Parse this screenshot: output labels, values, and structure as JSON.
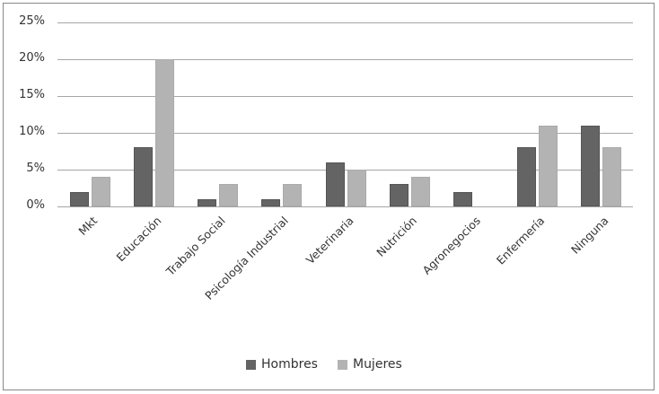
{
  "chart_data": {
    "type": "bar",
    "title": "",
    "xlabel": "",
    "ylabel": "",
    "ylim": [
      0,
      25
    ],
    "yticks": [
      "0%",
      "5%",
      "10%",
      "15%",
      "20%",
      "25%"
    ],
    "grid": true,
    "legend_position": "bottom",
    "categories": [
      "Mkt",
      "Educación",
      "Trabajo Social",
      "Psicología Industrial",
      "Veterinaria",
      "Nutrición",
      "Agronegocios",
      "Enfermería",
      "Ninguna"
    ],
    "series": [
      {
        "name": "Hombres",
        "color": "#646464",
        "values": [
          2,
          8,
          1,
          1,
          6,
          3,
          2,
          8,
          11
        ]
      },
      {
        "name": "Mujeres",
        "color": "#b3b3b3",
        "values": [
          4,
          20,
          3,
          3,
          5,
          4,
          0,
          11,
          8
        ]
      }
    ]
  },
  "legend": {
    "hombres": "Hombres",
    "mujeres": "Mujeres"
  }
}
